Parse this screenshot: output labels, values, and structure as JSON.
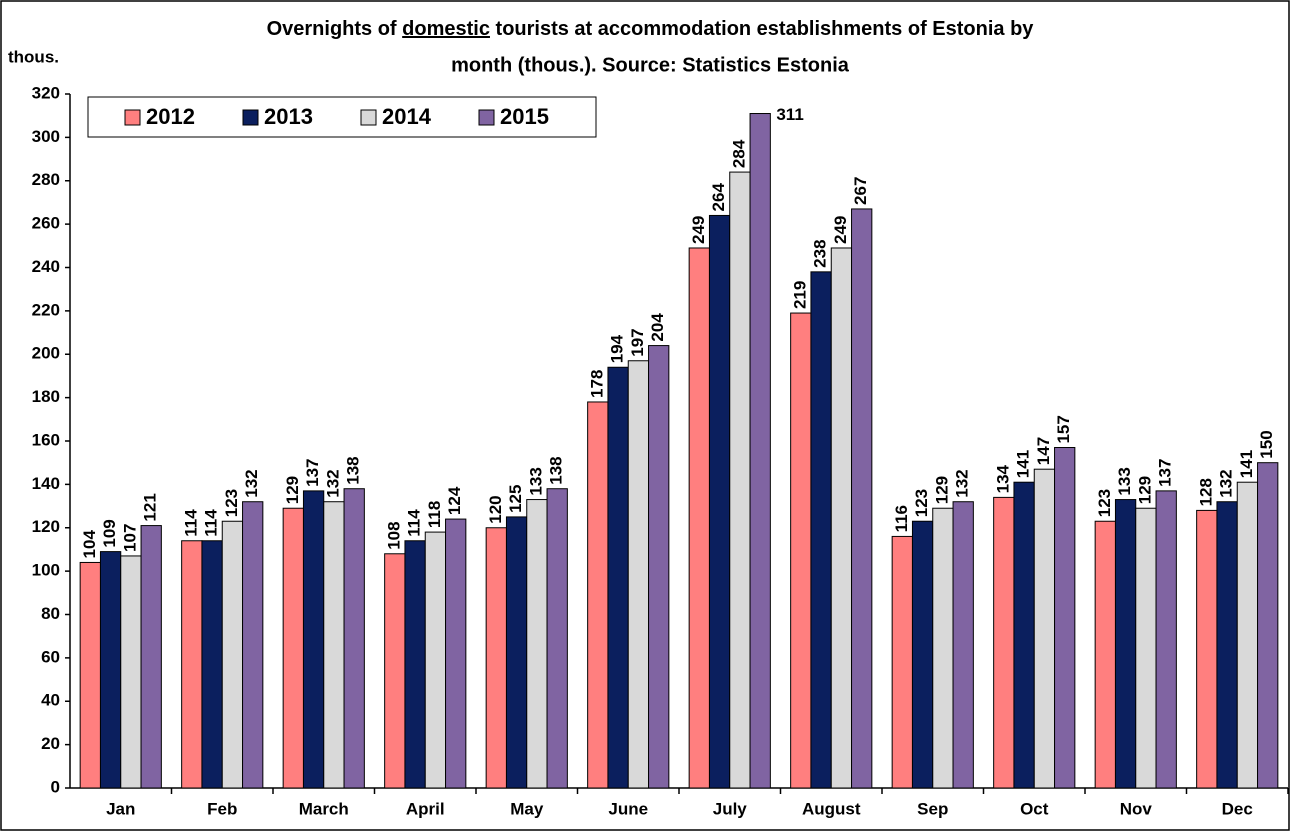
{
  "chart_data": {
    "type": "bar",
    "title": [
      "Overnights of",
      "domestic",
      "tourists at accommodation establishments of Estonia by",
      "month (thous.). Source: Statistics Estonia"
    ],
    "title_underline": 1,
    "y_label": "thous.",
    "categories": [
      "Jan",
      "Feb",
      "March",
      "April",
      "May",
      "June",
      "July",
      "August",
      "Sep",
      "Oct",
      "Nov",
      "Dec"
    ],
    "series": [
      {
        "name": "2012",
        "color": "#ff7f7f",
        "values": [
          104,
          114,
          129,
          108,
          120,
          178,
          249,
          219,
          116,
          134,
          123,
          128
        ]
      },
      {
        "name": "2013",
        "color": "#0b1f5e",
        "values": [
          109,
          114,
          137,
          114,
          125,
          194,
          264,
          238,
          123,
          141,
          133,
          132
        ]
      },
      {
        "name": "2014",
        "color": "#d9d9d9",
        "values": [
          107,
          123,
          132,
          118,
          133,
          197,
          284,
          249,
          129,
          147,
          129,
          141
        ]
      },
      {
        "name": "2015",
        "color": "#8064a2",
        "values": [
          121,
          132,
          138,
          124,
          138,
          204,
          311,
          267,
          132,
          157,
          137,
          150
        ]
      }
    ],
    "ylim": [
      0,
      320
    ],
    "yticks": [
      0,
      20,
      40,
      60,
      80,
      100,
      120,
      140,
      160,
      180,
      200,
      220,
      240,
      260,
      280,
      300,
      320
    ],
    "grid": false,
    "legend": "top-left",
    "data_labels": true
  }
}
